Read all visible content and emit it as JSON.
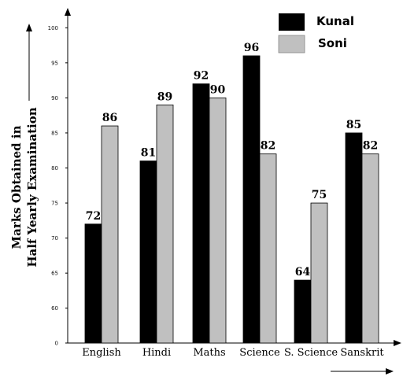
{
  "chart_data": {
    "type": "bar",
    "title": "",
    "xlabel": "",
    "ylabel": "Marks Obtained in Half Yearly Examination",
    "ylabel_lines": [
      "Marks Obtained in",
      "Half Yearly Examination"
    ],
    "ylim": [
      0,
      100
    ],
    "y_axis_break": true,
    "yticks": [
      0,
      60,
      65,
      70,
      75,
      80,
      85,
      90,
      95,
      100
    ],
    "categories": [
      "English",
      "Hindi",
      "Maths",
      "Science",
      "S. Science",
      "Sanskrit"
    ],
    "series": [
      {
        "name": "Kunal",
        "color": "#000000",
        "values": [
          72,
          81,
          92,
          96,
          64,
          85
        ]
      },
      {
        "name": "Soni",
        "color": "#c0c0c0",
        "values": [
          86,
          89,
          90,
          82,
          75,
          82
        ]
      }
    ],
    "legend": {
      "position": "top-right"
    },
    "grid": false
  }
}
